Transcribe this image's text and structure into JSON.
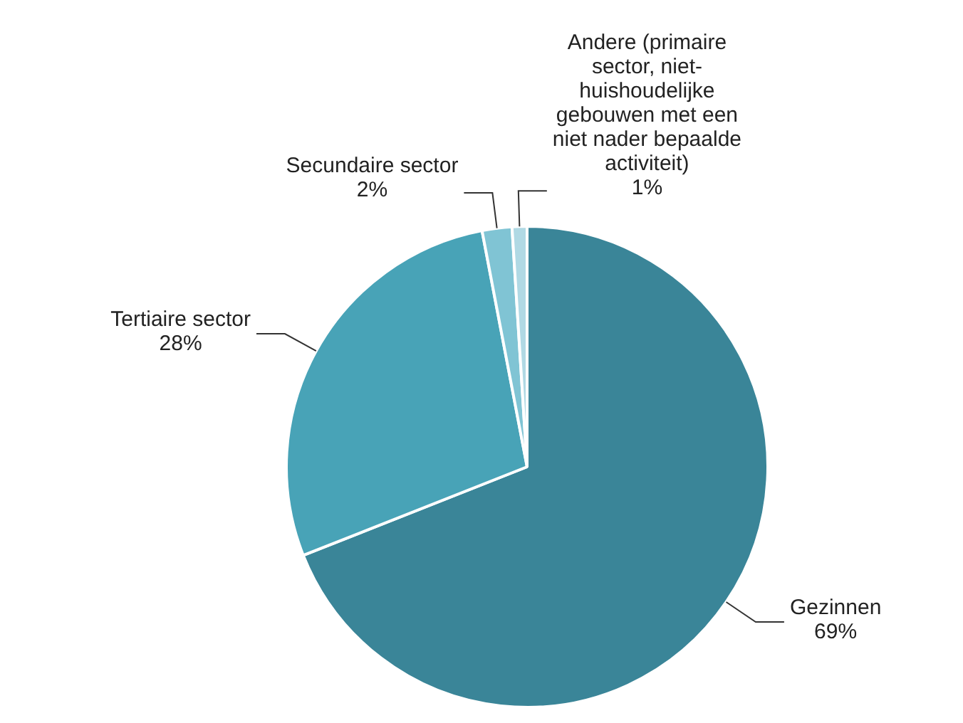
{
  "chart_data": {
    "type": "pie",
    "categories": [
      "Gezinnen",
      "Tertiaire sector",
      "Secundaire sector",
      "Andere (primaire sector, niet-huishoudelijke gebouwen met een niet nader bepaalde activiteit)"
    ],
    "values": [
      69,
      28,
      2,
      1
    ],
    "colors": [
      "#3a8598",
      "#48a3b7",
      "#80c4d4",
      "#b0d9e4"
    ],
    "value_labels": [
      "69%",
      "28%",
      "2%",
      "1%"
    ]
  }
}
